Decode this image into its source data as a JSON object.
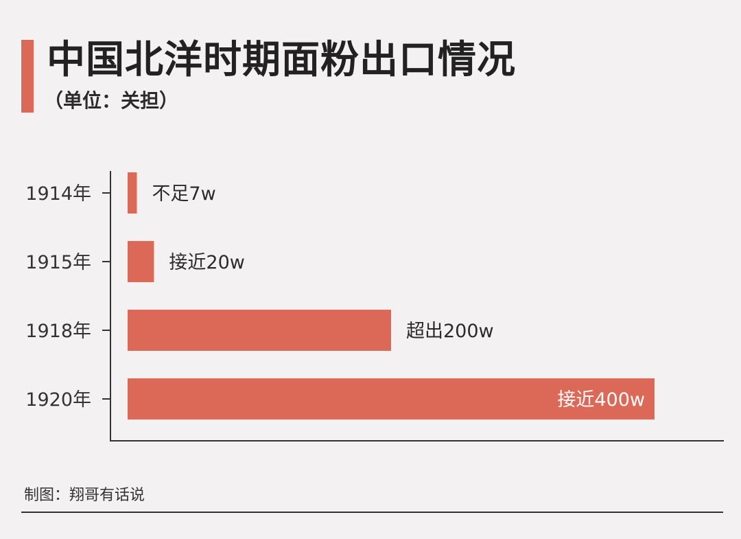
{
  "title": "中国北洋时期面粉出口情况",
  "subtitle": "（单位：关担）",
  "footer": "制图：翔哥有话说",
  "colors": {
    "accent": "#dc6957",
    "bar": "#dc6957",
    "axis": "#333333",
    "background": "#f4f1f2"
  },
  "chart_data": {
    "type": "bar",
    "orientation": "horizontal",
    "categories": [
      "1914年",
      "1915年",
      "1918年",
      "1920年"
    ],
    "values": [
      7,
      20,
      200,
      400
    ],
    "value_unit": "w",
    "data_labels": [
      "不足7w",
      "接近20w",
      "超出200w",
      "接近400w"
    ],
    "xlim": [
      0,
      400
    ],
    "grid": false,
    "legend": "none"
  }
}
